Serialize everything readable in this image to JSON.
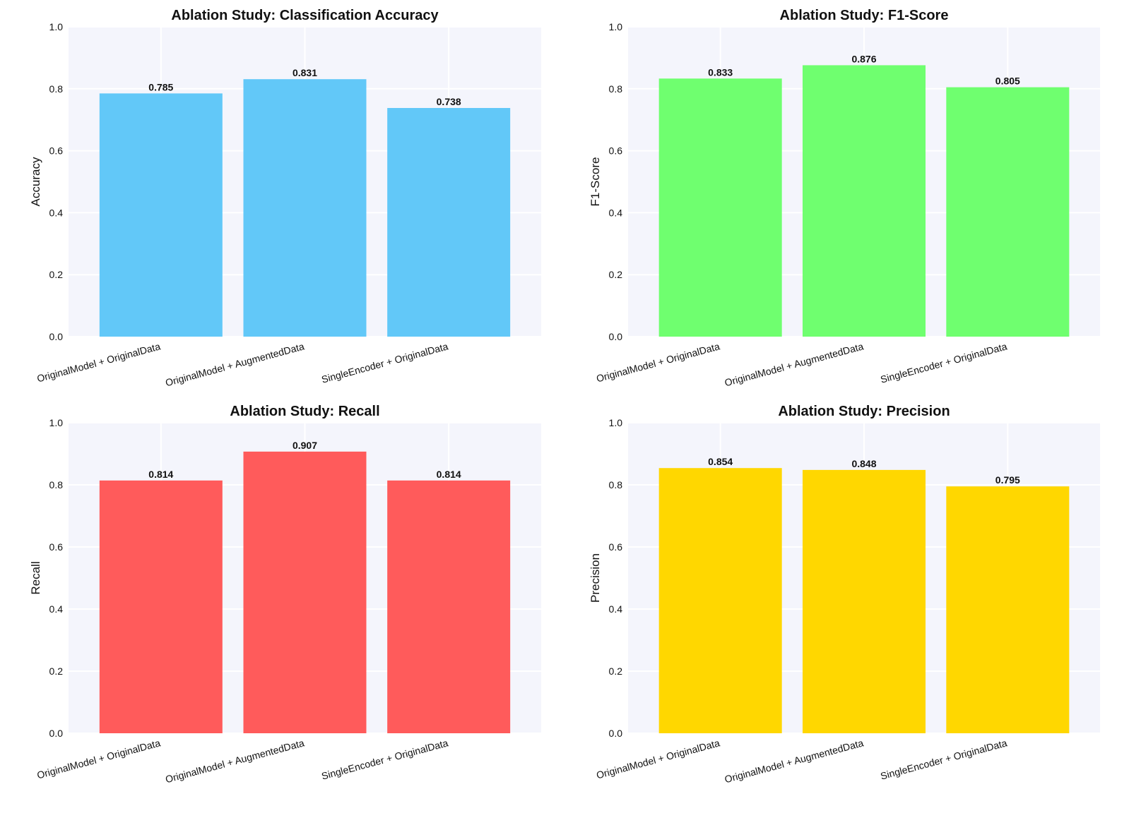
{
  "chart_data": [
    {
      "type": "bar",
      "title": "Ablation Study: Classification Accuracy",
      "xlabel": "",
      "ylabel": "Accuracy",
      "ylim": [
        0,
        1.0
      ],
      "categories": [
        "OriginalModel + OriginalData",
        "OriginalModel + AugmentedData",
        "SingleEncoder + OriginalData"
      ],
      "values": [
        0.785,
        0.831,
        0.738
      ],
      "value_labels": [
        "0.785",
        "0.831",
        "0.738"
      ],
      "color": "#62c8f8",
      "grid": true,
      "yticks": [
        "0.0",
        "0.2",
        "0.4",
        "0.6",
        "0.8",
        "1.0"
      ]
    },
    {
      "type": "bar",
      "title": "Ablation Study: F1-Score",
      "xlabel": "",
      "ylabel": "F1-Score",
      "ylim": [
        0,
        1.0
      ],
      "categories": [
        "OriginalModel + OriginalData",
        "OriginalModel + AugmentedData",
        "SingleEncoder + OriginalData"
      ],
      "values": [
        0.833,
        0.876,
        0.805
      ],
      "value_labels": [
        "0.833",
        "0.876",
        "0.805"
      ],
      "color": "#6fff6f",
      "grid": true,
      "yticks": [
        "0.0",
        "0.2",
        "0.4",
        "0.6",
        "0.8",
        "1.0"
      ]
    },
    {
      "type": "bar",
      "title": "Ablation Study: Recall",
      "xlabel": "",
      "ylabel": "Recall",
      "ylim": [
        0,
        1.0
      ],
      "categories": [
        "OriginalModel + OriginalData",
        "OriginalModel + AugmentedData",
        "SingleEncoder + OriginalData"
      ],
      "values": [
        0.814,
        0.907,
        0.814
      ],
      "value_labels": [
        "0.814",
        "0.907",
        "0.814"
      ],
      "color": "#ff5b5b",
      "grid": true,
      "yticks": [
        "0.0",
        "0.2",
        "0.4",
        "0.6",
        "0.8",
        "1.0"
      ]
    },
    {
      "type": "bar",
      "title": "Ablation Study: Precision",
      "xlabel": "",
      "ylabel": "Precision",
      "ylim": [
        0,
        1.0
      ],
      "categories": [
        "OriginalModel + OriginalData",
        "OriginalModel + AugmentedData",
        "SingleEncoder + OriginalData"
      ],
      "values": [
        0.854,
        0.848,
        0.795
      ],
      "value_labels": [
        "0.854",
        "0.848",
        "0.795"
      ],
      "color": "#ffd700",
      "grid": true,
      "yticks": [
        "0.0",
        "0.2",
        "0.4",
        "0.6",
        "0.8",
        "1.0"
      ]
    }
  ]
}
